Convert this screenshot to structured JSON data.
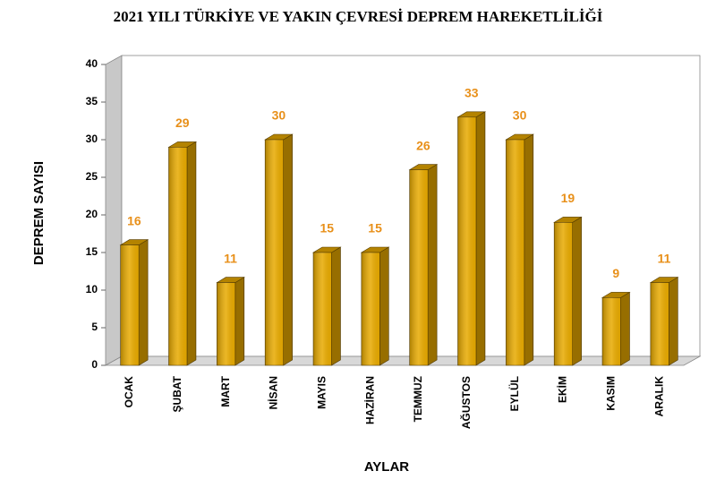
{
  "chart_data": {
    "type": "bar3d",
    "title": "2021 YILI TÜRKİYE VE YAKIN ÇEVRESİ DEPREM HAREKETLİLİĞİ",
    "x_label": "AYLAR",
    "y_label": "DEPREM SAYISI",
    "categories": [
      "OCAK",
      "ŞUBAT",
      "MART",
      "NİSAN",
      "MAYIS",
      "HAZİRAN",
      "TEMMUZ",
      "AĞUSTOS",
      "EYLÜL",
      "EKİM",
      "KASIM",
      "ARALIK"
    ],
    "values": [
      16,
      29,
      11,
      30,
      15,
      15,
      26,
      33,
      30,
      19,
      9,
      11
    ],
    "color": "#e8aa00",
    "label_color": "#e8901a",
    "ylim": [
      0,
      40
    ],
    "yticks": [
      0,
      5,
      10,
      15,
      20,
      25,
      30,
      35,
      40
    ]
  }
}
